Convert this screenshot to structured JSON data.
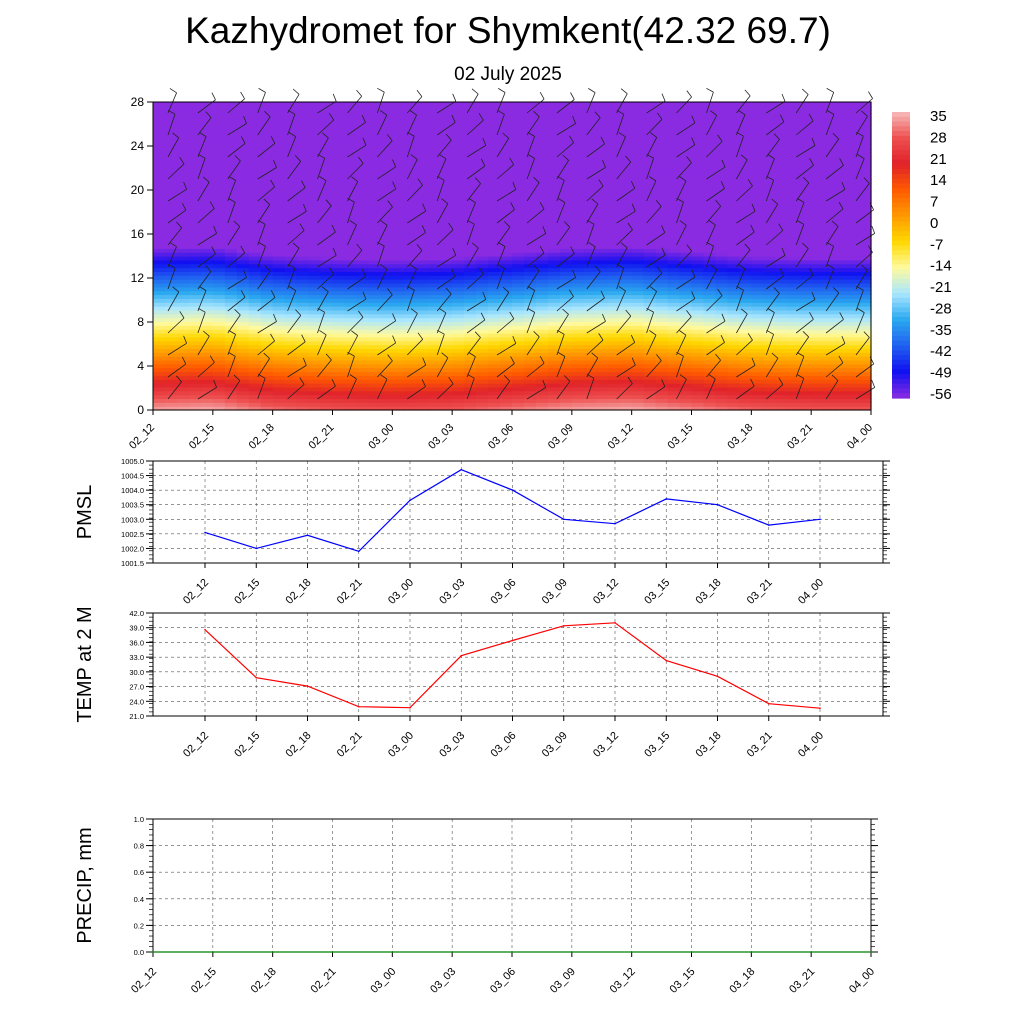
{
  "title": "Kazhydromet for Shymkent(42.32 69.7)",
  "subtitle": "02 July 2025",
  "chart_data": [
    {
      "type": "heatmap",
      "title": "Kazhydromet for Shymkent(42.32 69.7)",
      "subtitle": "02 July 2025",
      "x_tick_labels": [
        "02_12",
        "02_15",
        "02_18",
        "02_21",
        "03_00",
        "03_03",
        "03_06",
        "03_09",
        "03_12",
        "03_15",
        "03_18",
        "03_21",
        "04_00"
      ],
      "y_tick_labels": [
        "0",
        "4",
        "8",
        "12",
        "16",
        "20",
        "24",
        "28"
      ],
      "ylim": [
        0,
        28
      ],
      "colorbar_labels": [
        "35",
        "28",
        "21",
        "14",
        "7",
        "0",
        "-7",
        "-14",
        "-21",
        "-28",
        "-35",
        "-42",
        "-49",
        "-56"
      ],
      "colorbar_range": [
        -60,
        38
      ],
      "colorbar_colors": [
        "#f7bcbc",
        "#ee5050",
        "#e0222a",
        "#ff5a00",
        "#ff9a00",
        "#ffd800",
        "#fffaa0",
        "#a8e6ff",
        "#2aa8f0",
        "#2060f0",
        "#1010f0",
        "#8a2be2"
      ],
      "surface_temp_by_time": [
        36,
        37,
        32,
        30,
        29,
        30,
        33,
        36,
        37,
        34,
        31,
        30,
        30
      ],
      "lapse_rate_c_per_km": -6.5,
      "wind_barbs": true
    },
    {
      "type": "line",
      "ylabel": "PMSL",
      "x": [
        "02_12",
        "02_15",
        "02_18",
        "02_21",
        "03_00",
        "03_03",
        "03_06",
        "03_09",
        "03_12",
        "03_15",
        "03_18",
        "03_21",
        "04_00"
      ],
      "y_tick_labels": [
        "1001.5",
        "1002.0",
        "1002.5",
        "1003.0",
        "1003.5",
        "1004.0",
        "1004.5",
        "1005.0"
      ],
      "ylim": [
        1001.5,
        1005.0
      ],
      "series": [
        {
          "values": [
            1002.55,
            1002.0,
            1002.45,
            1001.9,
            1003.65,
            1004.7,
            1004.0,
            1003.0,
            1002.85,
            1003.7,
            1003.5,
            1002.8,
            1003.0
          ],
          "color": "#0000ff"
        }
      ],
      "grid": true
    },
    {
      "type": "line",
      "ylabel": "TEMP at 2 M",
      "x": [
        "02_12",
        "02_15",
        "02_18",
        "02_21",
        "03_00",
        "03_03",
        "03_06",
        "03_09",
        "03_12",
        "03_15",
        "03_18",
        "03_21",
        "04_00"
      ],
      "y_tick_labels": [
        "21.0",
        "24.0",
        "27.0",
        "30.0",
        "33.0",
        "36.0",
        "39.0",
        "42.0"
      ],
      "ylim": [
        21.0,
        42.0
      ],
      "series": [
        {
          "values": [
            38.6,
            28.8,
            27.1,
            22.9,
            22.7,
            33.3,
            36.4,
            39.4,
            40.0,
            32.3,
            29.1,
            23.5,
            22.6
          ],
          "color": "#ff0000"
        }
      ],
      "grid": true
    },
    {
      "type": "line",
      "ylabel": "PRECIP, mm",
      "x": [
        "02_12",
        "02_15",
        "02_18",
        "02_21",
        "03_00",
        "03_03",
        "03_06",
        "03_09",
        "03_12",
        "03_15",
        "03_18",
        "03_21",
        "04_00"
      ],
      "y_tick_labels": [
        "0.0",
        "0.2",
        "0.4",
        "0.6",
        "0.8",
        "1.0"
      ],
      "ylim": [
        0.0,
        1.0
      ],
      "series": [
        {
          "values": [
            0,
            0,
            0,
            0,
            0,
            0,
            0,
            0,
            0,
            0,
            0,
            0,
            0
          ],
          "color": "#008000"
        }
      ],
      "grid": true
    }
  ]
}
